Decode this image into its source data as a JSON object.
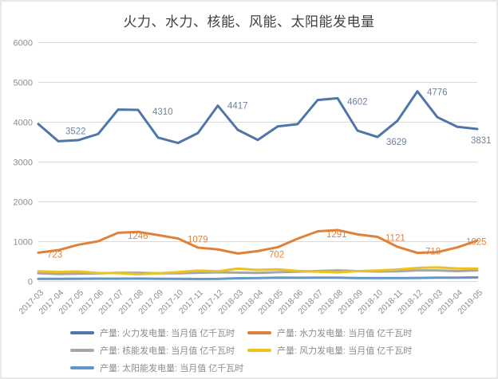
{
  "chart_data": {
    "type": "line",
    "title": "火力、水力、核能、风能、太阳能发电量",
    "xlabel": "",
    "ylabel": "",
    "ylim": [
      0,
      6000
    ],
    "yticks": [
      0,
      1000,
      2000,
      3000,
      4000,
      5000,
      6000
    ],
    "grid": true,
    "legend_position": "bottom",
    "style": {
      "grid_color": "#d9d9d9",
      "axis_text_color": "#8c8c8c",
      "title_color": "#404040"
    },
    "categories": [
      "2017-03",
      "2017-04",
      "2017-05",
      "2017-06",
      "2017-07",
      "2017-08",
      "2017-09",
      "2017-10",
      "2017-11",
      "2017-12",
      "2018-03",
      "2018-04",
      "2018-05",
      "2018-06",
      "2018-07",
      "2018-08",
      "2018-09",
      "2018-10",
      "2018-11",
      "2018-12",
      "2019-03",
      "2019-04",
      "2019-05"
    ],
    "series": [
      {
        "id": "thermal",
        "name": "产量: 火力发电量: 当月值 亿千瓦时",
        "color": "#4e76a8",
        "label_color": "#6e82a4",
        "values": [
          3955,
          3522,
          3549,
          3705,
          4317,
          4310,
          3614,
          3478,
          3727,
          4417,
          3807,
          3555,
          3894,
          3953,
          4557,
          4602,
          3788,
          3629,
          4036,
          4776,
          4126,
          3885,
          3831
        ],
        "point_labels": [
          {
            "index": 1,
            "text": "3522",
            "dx": 9,
            "dy": -9
          },
          {
            "index": 5,
            "text": "4310",
            "dx": 18,
            "dy": 6
          },
          {
            "index": 9,
            "text": "4417",
            "dx": 12,
            "dy": 4
          },
          {
            "index": 15,
            "text": "4602",
            "dx": 12,
            "dy": 8
          },
          {
            "index": 17,
            "text": "3629",
            "dx": 11,
            "dy": 10
          },
          {
            "index": 19,
            "text": "4776",
            "dx": 12,
            "dy": 5
          },
          {
            "index": 22,
            "text": "3831",
            "dx": -8,
            "dy": 18
          }
        ]
      },
      {
        "id": "hydro",
        "name": "产量: 水力发电量: 当月值 亿千瓦时",
        "color": "#e0813a",
        "label_color": "#de8544",
        "values": [
          723,
          787,
          921,
          1010,
          1223,
          1246,
          1165,
          1079,
          851,
          805,
          702,
          762,
          861,
          1075,
          1260,
          1291,
          1183,
          1121,
          870,
          718,
          737,
          857,
          1025
        ],
        "point_labels": [
          {
            "index": 0,
            "text": "723",
            "dx": 11,
            "dy": 6
          },
          {
            "index": 5,
            "text": "1246",
            "dx": -13,
            "dy": 9
          },
          {
            "index": 7,
            "text": "1079",
            "dx": 12,
            "dy": 5
          },
          {
            "index": 10,
            "text": "702",
            "dx": 39,
            "dy": 5
          },
          {
            "index": 15,
            "text": "1291",
            "dx": -14,
            "dy": 9
          },
          {
            "index": 17,
            "text": "1121",
            "dx": 10,
            "dy": 5
          },
          {
            "index": 19,
            "text": "718",
            "dx": 10,
            "dy": 2
          },
          {
            "index": 22,
            "text": "1025",
            "dx": -14,
            "dy": 5
          }
        ]
      },
      {
        "id": "nuclear",
        "name": "产量: 核能发电量: 当月值 亿千瓦时",
        "color": "#a6a6a6",
        "label_color": "#a6a6a6",
        "values": [
          207,
          188,
          196,
          203,
          217,
          217,
          204,
          204,
          217,
          231,
          222,
          215,
          232,
          245,
          263,
          277,
          260,
          250,
          256,
          277,
          277,
          261,
          277
        ],
        "point_labels": []
      },
      {
        "id": "wind",
        "name": "产量: 风力发电量: 当月值 亿千瓦时",
        "color": "#ecc21f",
        "label_color": "#ecc21f",
        "values": [
          256,
          241,
          252,
          212,
          208,
          182,
          205,
          235,
          273,
          256,
          323,
          289,
          304,
          264,
          245,
          228,
          261,
          274,
          300,
          339,
          354,
          324,
          326
        ],
        "point_labels": []
      },
      {
        "id": "solar",
        "name": "产量: 太阳能发电量: 当月值 亿千瓦时",
        "color": "#6096c8",
        "label_color": "#6096c8",
        "values": [
          66,
          64,
          68,
          70,
          71,
          72,
          67,
          66,
          62,
          64,
          81,
          85,
          95,
          93,
          95,
          95,
          85,
          86,
          84,
          87,
          95,
          96,
          102
        ],
        "point_labels": []
      }
    ]
  }
}
